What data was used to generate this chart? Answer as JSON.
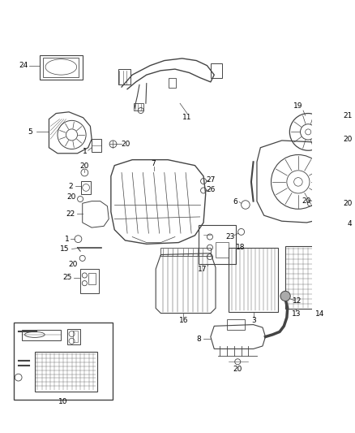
{
  "background_color": "#ffffff",
  "line_color": "#444444",
  "label_color": "#000000",
  "fig_width": 4.38,
  "fig_height": 5.33,
  "dpi": 100
}
